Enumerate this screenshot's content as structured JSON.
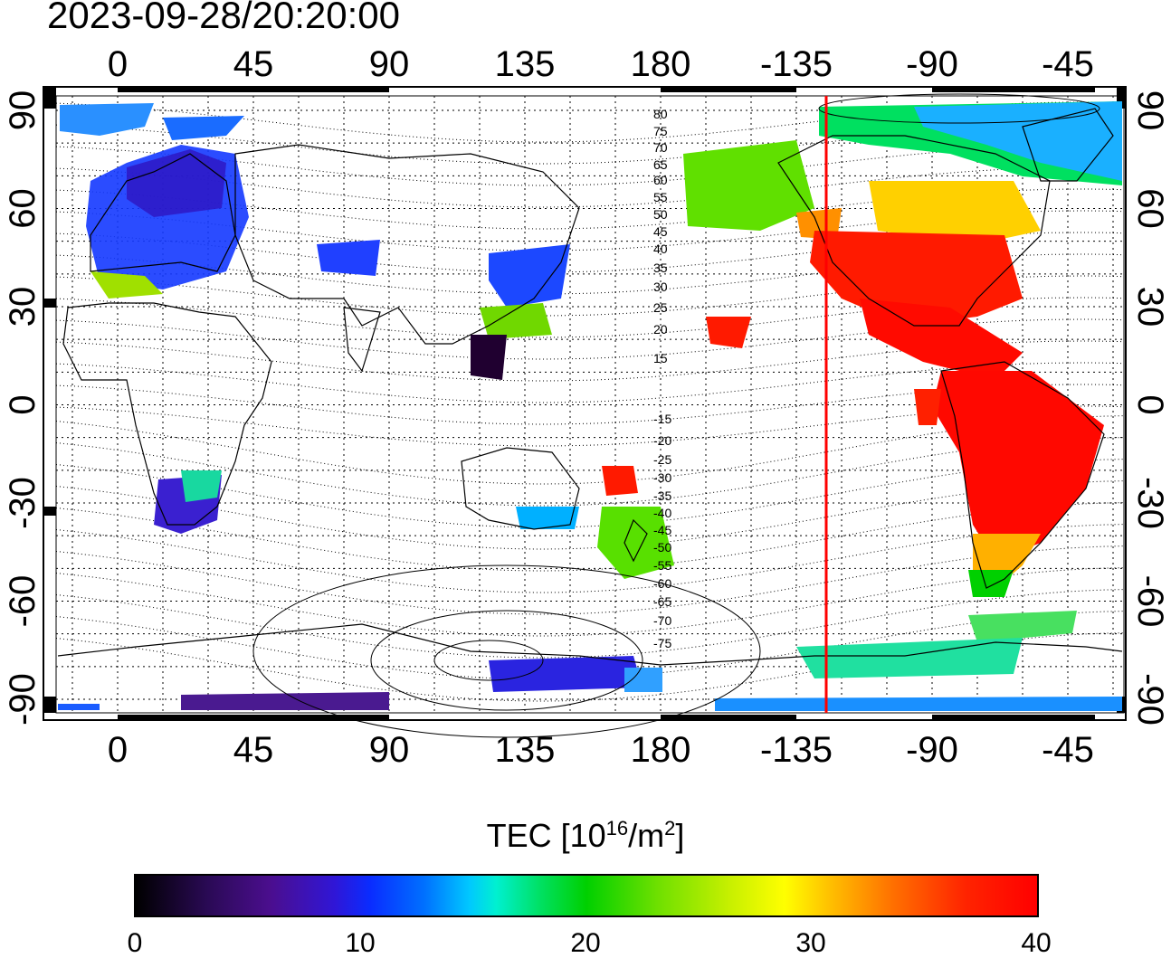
{
  "timestamp": "2023-09-28/20:20:00",
  "map": {
    "top_lon_ticks": [
      "0",
      "45",
      "90",
      "135",
      "180",
      "-135",
      "-90",
      "-45"
    ],
    "bottom_lon_ticks": [
      "0",
      "45",
      "90",
      "135",
      "180",
      "-135",
      "-90",
      "-45"
    ],
    "left_lat_ticks": [
      "90",
      "60",
      "30",
      "0",
      "-30",
      "-60",
      "-90"
    ],
    "right_lat_ticks": [
      "90",
      "60",
      "30",
      "0",
      "-30",
      "-60",
      "-90"
    ],
    "contour_labels": [
      "80",
      "75",
      "70",
      "65",
      "60",
      "55",
      "50",
      "45",
      "40",
      "35",
      "30",
      "25",
      "20",
      "15",
      "-15",
      "-20",
      "-25",
      "-30",
      "-35",
      "-40",
      "-45",
      "-50",
      "-55",
      "-60",
      "-65",
      "-70",
      "-75"
    ],
    "marker_line_color": "#ff0000",
    "marker_line_lon": -125
  },
  "colorbar": {
    "title_prefix": "TEC  [10",
    "title_sup1": "16",
    "title_mid": "/m",
    "title_sup2": "2",
    "title_suffix": "]",
    "ticks": [
      "0",
      "10",
      "20",
      "30",
      "40"
    ],
    "range": [
      0,
      40
    ]
  }
}
